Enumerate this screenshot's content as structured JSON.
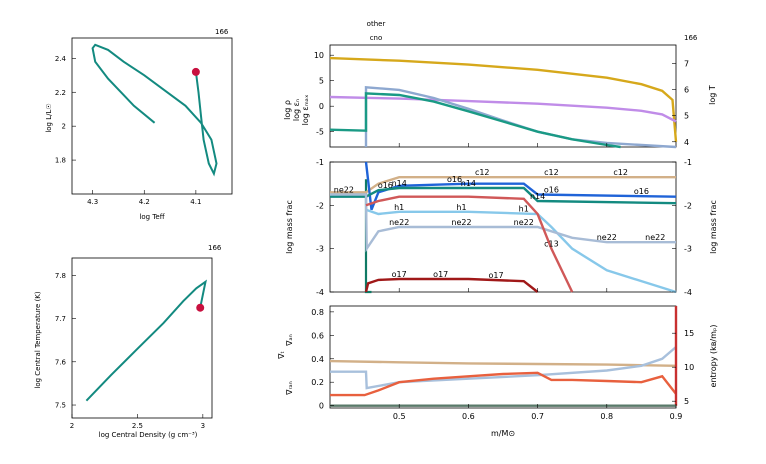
{
  "figure": {
    "model_number": "166",
    "model_number_hr": "166",
    "model_number_rho": "166",
    "model_number_profile": "166",
    "top_labels": [
      "other",
      "cno"
    ]
  },
  "chart_data": [
    {
      "type": "line",
      "id": "hr",
      "xlabel": "log Teff",
      "ylabel": "log L/L☉",
      "xlim": [
        4.34,
        4.03
      ],
      "ylim": [
        1.6,
        2.52
      ],
      "xticks": [
        4.3,
        4.2,
        4.1
      ],
      "yticks": [
        1.8,
        2.0,
        2.2,
        2.4
      ],
      "line_color": "#138a80",
      "marker_color": "#c8103f",
      "x": [
        4.18,
        4.22,
        4.27,
        4.295,
        4.3,
        4.295,
        4.27,
        4.24,
        4.2,
        4.16,
        4.12,
        4.09,
        4.07,
        4.06,
        4.065,
        4.075,
        4.085,
        4.09,
        4.095,
        4.1
      ],
      "y": [
        2.02,
        2.12,
        2.28,
        2.38,
        2.46,
        2.48,
        2.45,
        2.38,
        2.3,
        2.21,
        2.12,
        2.02,
        1.92,
        1.78,
        1.72,
        1.78,
        1.92,
        2.06,
        2.2,
        2.32
      ],
      "current": {
        "x": 4.1,
        "y": 2.32
      }
    },
    {
      "type": "line",
      "id": "rhoT",
      "xlabel": "log Central Density (g cm⁻³)",
      "ylabel": "log Central Temperature (K)",
      "xlim": [
        2.0,
        3.07
      ],
      "ylim": [
        7.47,
        7.84
      ],
      "xticks": [
        2,
        2.5,
        3
      ],
      "xtick_labels": [
        "2",
        "2.5",
        "3"
      ],
      "yticks": [
        7.5,
        7.6,
        7.7,
        7.8
      ],
      "line_color": "#138a80",
      "marker_color": "#c8103f",
      "x": [
        2.11,
        2.3,
        2.5,
        2.7,
        2.85,
        2.95,
        3.02,
        2.98
      ],
      "y": [
        7.51,
        7.57,
        7.63,
        7.69,
        7.74,
        7.77,
        7.785,
        7.725
      ],
      "current": {
        "x": 2.98,
        "y": 7.725
      }
    },
    {
      "type": "line",
      "id": "profile_top",
      "xlim": [
        0.4,
        0.9
      ],
      "ylim": [
        -8,
        12
      ],
      "ylim_right": [
        3.8,
        7.7
      ],
      "yticks": [
        -5,
        0,
        5,
        10
      ],
      "yticks_right": [
        4,
        5,
        6,
        7
      ],
      "left_labels": [
        {
          "text": "log ρ",
          "color": "#c08ce8"
        },
        {
          "text": "log εₙ",
          "color": "#138a80"
        },
        {
          "text": "log εₘₐₓ",
          "color": "#8ea8d0"
        }
      ],
      "right_label": "log T",
      "right_label_color": "#d6a81b",
      "series": [
        {
          "color": "#d6a81b",
          "axis": "right",
          "x": [
            0.4,
            0.5,
            0.6,
            0.7,
            0.8,
            0.85,
            0.88,
            0.895,
            0.9
          ],
          "y": [
            7.2,
            7.1,
            6.95,
            6.75,
            6.45,
            6.2,
            5.95,
            5.6,
            4.0
          ]
        },
        {
          "color": "#c08ce8",
          "axis": "left",
          "x": [
            0.4,
            0.5,
            0.6,
            0.7,
            0.8,
            0.85,
            0.88,
            0.9
          ],
          "y": [
            1.8,
            1.5,
            1.0,
            0.5,
            -0.3,
            -0.9,
            -1.6,
            -3.0
          ]
        },
        {
          "color": "#8ea8d0",
          "axis": "left",
          "x": [
            0.452,
            0.452,
            0.5,
            0.55,
            0.6,
            0.65,
            0.7,
            0.75,
            0.8,
            0.85,
            0.9
          ],
          "y": [
            -8,
            3.7,
            3.2,
            1.6,
            -0.5,
            -2.8,
            -5.0,
            -6.5,
            -7.2,
            -7.6,
            -8.0
          ]
        },
        {
          "color": "#1a9a85",
          "axis": "left",
          "x": [
            0.4,
            0.452,
            0.452,
            0.5,
            0.55,
            0.6,
            0.65,
            0.7,
            0.75,
            0.8,
            0.82
          ],
          "y": [
            -4.6,
            -4.8,
            2.5,
            2.2,
            0.9,
            -1.0,
            -3.0,
            -5.0,
            -6.5,
            -7.6,
            -8.0
          ]
        }
      ]
    },
    {
      "type": "line",
      "id": "profile_mid",
      "xlim": [
        0.4,
        0.9
      ],
      "ylim": [
        -4,
        -1
      ],
      "yticks": [
        -4,
        -3,
        -2,
        -1
      ],
      "ylabel": "log mass frac",
      "ylabel_right": "log mass frac",
      "series": [
        {
          "name": "c12",
          "color": "#d2b088",
          "x": [
            0.4,
            0.452,
            0.47,
            0.5,
            0.6,
            0.7,
            0.8,
            0.9
          ],
          "y": [
            -1.7,
            -1.7,
            -1.5,
            -1.35,
            -1.35,
            -1.35,
            -1.35,
            -1.35
          ],
          "labels": [
            0.62,
            0.72,
            0.82
          ]
        },
        {
          "name": "o16",
          "color": "#1f63d8",
          "x": [
            0.452,
            0.46,
            0.47,
            0.5,
            0.6,
            0.68,
            0.7,
            0.9
          ],
          "y": [
            -1.0,
            -2.1,
            -1.7,
            -1.55,
            -1.5,
            -1.5,
            -1.75,
            -1.8
          ],
          "labels": [
            0.48,
            0.58,
            0.72,
            0.85
          ]
        },
        {
          "name": "n14",
          "color": "#138a80",
          "x": [
            0.4,
            0.452,
            0.47,
            0.5,
            0.6,
            0.68,
            0.7,
            0.9
          ],
          "y": [
            -1.8,
            -1.8,
            -1.65,
            -1.6,
            -1.6,
            -1.6,
            -1.9,
            -1.95
          ],
          "labels": [
            0.5,
            0.6,
            0.7
          ]
        },
        {
          "name": "h1",
          "color": "#87c8ea",
          "x": [
            0.452,
            0.47,
            0.5,
            0.6,
            0.7,
            0.72,
            0.75,
            0.8,
            0.9
          ],
          "y": [
            -2.1,
            -2.2,
            -2.15,
            -2.15,
            -2.2,
            -2.5,
            -3.0,
            -3.5,
            -4.0
          ],
          "labels": [
            0.5,
            0.59,
            0.68
          ]
        },
        {
          "name": "ne22",
          "color": "#a8bcd6",
          "x": [
            0.4,
            0.452,
            0.453,
            0.47,
            0.5,
            0.6,
            0.7,
            0.75,
            0.8,
            0.9
          ],
          "y": [
            -1.75,
            -1.75,
            -3.0,
            -2.6,
            -2.5,
            -2.5,
            -2.5,
            -2.75,
            -2.85,
            -2.85
          ],
          "labels": [
            0.42,
            0.5,
            0.59,
            0.68,
            0.8,
            0.87
          ]
        },
        {
          "name": "c13",
          "color": "#d05858",
          "x": [
            0.452,
            0.47,
            0.5,
            0.6,
            0.68,
            0.7,
            0.72,
            0.75
          ],
          "y": [
            -2.0,
            -1.9,
            -1.8,
            -1.8,
            -1.85,
            -2.2,
            -3.0,
            -4.0
          ],
          "labels": [
            0.72
          ]
        },
        {
          "name": "o17",
          "color": "#a01818",
          "x": [
            0.452,
            0.455,
            0.47,
            0.5,
            0.6,
            0.68,
            0.7
          ],
          "y": [
            -4.0,
            -3.8,
            -3.72,
            -3.7,
            -3.7,
            -3.75,
            -4.0
          ],
          "labels": [
            0.5,
            0.56,
            0.64
          ]
        }
      ],
      "extra_lines": [
        {
          "color": "#0f7a65",
          "x": [
            0.452,
            0.452,
            0.46
          ],
          "y": [
            -1.4,
            -4.0,
            -4.0
          ]
        }
      ]
    },
    {
      "type": "line",
      "id": "profile_bot",
      "xlim": [
        0.4,
        0.9
      ],
      "ylim": [
        -0.02,
        0.85
      ],
      "ylim_right": [
        4,
        19
      ],
      "yticks": [
        0,
        0.2,
        0.4,
        0.6,
        0.8
      ],
      "yticks_right": [
        5,
        10,
        15
      ],
      "xticks": [
        0.5,
        0.6,
        0.7,
        0.8,
        0.9
      ],
      "xlabel": "m/M⊙",
      "ylabel_right": "entropy (kʙ/mₚ)",
      "left_labels": [
        {
          "text": "∇ₐₙ",
          "color": "#c87840"
        },
        {
          "text": "∇ₜ",
          "color": "#d83020"
        },
        {
          "text": "∇ᵣₐₙ",
          "color": "#e05030"
        }
      ],
      "series": [
        {
          "color": "#d2b088",
          "axis": "left",
          "x": [
            0.4,
            0.5,
            0.6,
            0.7,
            0.8,
            0.9
          ],
          "y": [
            0.38,
            0.37,
            0.36,
            0.355,
            0.35,
            0.34
          ]
        },
        {
          "color": "#a8c0dc",
          "axis": "left",
          "x": [
            0.4,
            0.452,
            0.453,
            0.5,
            0.6,
            0.7,
            0.8,
            0.85,
            0.88,
            0.9
          ],
          "y": [
            0.29,
            0.29,
            0.15,
            0.2,
            0.23,
            0.26,
            0.3,
            0.34,
            0.4,
            0.5
          ]
        },
        {
          "color": "#e8603e",
          "axis": "left",
          "x": [
            0.4,
            0.45,
            0.47,
            0.5,
            0.55,
            0.6,
            0.65,
            0.7,
            0.72,
            0.75,
            0.8,
            0.85,
            0.88,
            0.9
          ],
          "y": [
            0.09,
            0.09,
            0.13,
            0.2,
            0.23,
            0.25,
            0.27,
            0.28,
            0.22,
            0.22,
            0.21,
            0.2,
            0.25,
            0.1
          ]
        },
        {
          "color": "#c83030",
          "axis": "left",
          "x": [
            0.9,
            0.9
          ],
          "y": [
            0.0,
            0.85
          ]
        },
        {
          "color": "#5a7a6a",
          "axis": "left",
          "x": [
            0.4,
            0.9
          ],
          "y": [
            0.0,
            0.0
          ]
        }
      ]
    }
  ]
}
